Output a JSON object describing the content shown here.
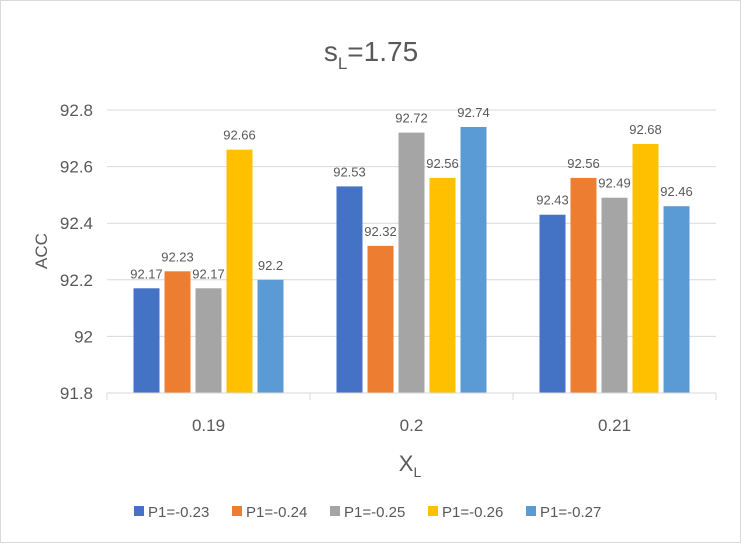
{
  "chart_data": {
    "type": "bar",
    "title_main": "s",
    "title_sub": "L",
    "title_rest": "=1.75",
    "xlabel_main": "X",
    "xlabel_sub": "L",
    "ylabel": "ACC",
    "categories": [
      "0.19",
      "0.2",
      "0.21"
    ],
    "ylim": [
      91.8,
      92.8
    ],
    "yticks": [
      91.8,
      92,
      92.2,
      92.4,
      92.6,
      92.8
    ],
    "grid": true,
    "legend_position": "bottom",
    "series": [
      {
        "name": "P1=-0.23",
        "color": "#4472C4",
        "values": [
          92.17,
          92.53,
          92.43
        ]
      },
      {
        "name": "P1=-0.24",
        "color": "#ED7D31",
        "values": [
          92.23,
          92.32,
          92.56
        ]
      },
      {
        "name": "P1=-0.25",
        "color": "#A5A5A5",
        "values": [
          92.17,
          92.72,
          92.49
        ]
      },
      {
        "name": "P1=-0.26",
        "color": "#FFC000",
        "values": [
          92.66,
          92.56,
          92.68
        ]
      },
      {
        "name": "P1=-0.27",
        "color": "#5B9BD5",
        "values": [
          92.2,
          92.74,
          92.46
        ]
      }
    ]
  }
}
